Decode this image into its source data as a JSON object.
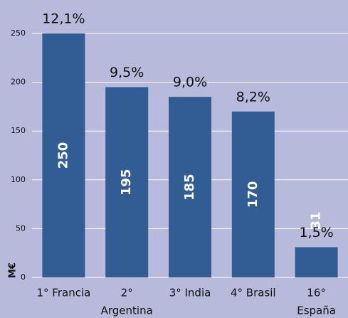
{
  "chart_data": {
    "type": "bar",
    "categories": [
      [
        "1° Francia"
      ],
      [
        "2°",
        "Argentina"
      ],
      [
        "3° India"
      ],
      [
        "4° Brasil"
      ],
      [
        "16°",
        "España"
      ]
    ],
    "values": [
      250,
      195,
      185,
      170,
      31
    ],
    "top_labels": [
      "12,1%",
      "9,5%",
      "9,0%",
      "8,2%",
      "1,5%"
    ],
    "ylabel": "M€",
    "color": "#325d94",
    "ylim": [
      0,
      250
    ],
    "yticks": [
      0,
      50,
      100,
      150,
      200,
      250
    ],
    "grid": true
  }
}
